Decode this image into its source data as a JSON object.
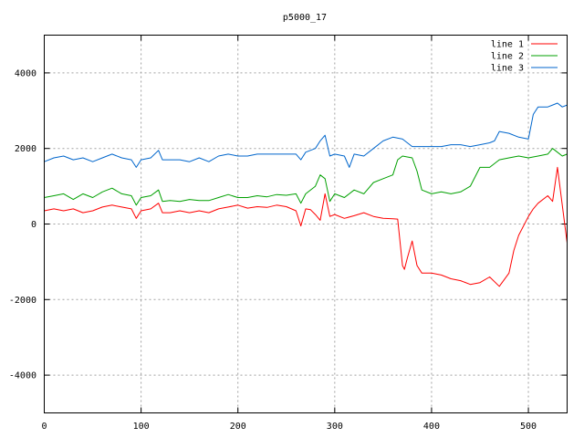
{
  "chart_data": {
    "type": "line",
    "title": "p5000_17",
    "xlabel": "",
    "ylabel": "",
    "xlim": [
      0,
      540
    ],
    "ylim": [
      -5000,
      5000
    ],
    "xticks": [
      0,
      100,
      200,
      300,
      400,
      500
    ],
    "yticks": [
      -4000,
      -2000,
      0,
      2000,
      4000
    ],
    "grid": true,
    "legend_position": "top-right",
    "series": [
      {
        "name": "line 1",
        "color": "#ff0000",
        "x": [
          0,
          10,
          20,
          30,
          40,
          50,
          60,
          70,
          80,
          90,
          95,
          100,
          110,
          118,
          122,
          130,
          140,
          150,
          160,
          170,
          180,
          190,
          200,
          210,
          220,
          230,
          240,
          250,
          260,
          265,
          270,
          275,
          280,
          285,
          290,
          295,
          300,
          310,
          320,
          330,
          340,
          350,
          360,
          365,
          370,
          372,
          375,
          380,
          385,
          390,
          400,
          410,
          420,
          430,
          440,
          450,
          460,
          470,
          480,
          485,
          490,
          500,
          505,
          510,
          520,
          525,
          530,
          535,
          540
        ],
        "y": [
          350,
          400,
          350,
          400,
          300,
          350,
          450,
          500,
          450,
          400,
          150,
          350,
          400,
          550,
          300,
          300,
          350,
          300,
          350,
          300,
          400,
          450,
          500,
          420,
          460,
          440,
          500,
          460,
          350,
          -50,
          400,
          380,
          250,
          100,
          800,
          200,
          250,
          150,
          220,
          300,
          200,
          150,
          140,
          130,
          -1100,
          -1200,
          -900,
          -450,
          -1100,
          -1300,
          -1300,
          -1350,
          -1450,
          -1500,
          -1600,
          -1550,
          -1400,
          -1650,
          -1300,
          -700,
          -300,
          200,
          400,
          550,
          750,
          600,
          1500,
          500,
          -500
        ]
      },
      {
        "name": "line 2",
        "color": "#00a000",
        "x": [
          0,
          10,
          20,
          30,
          40,
          50,
          60,
          70,
          80,
          90,
          95,
          100,
          110,
          118,
          122,
          130,
          140,
          150,
          160,
          170,
          180,
          190,
          200,
          210,
          220,
          230,
          240,
          250,
          260,
          265,
          270,
          280,
          285,
          290,
          295,
          300,
          310,
          320,
          330,
          340,
          350,
          360,
          365,
          370,
          380,
          385,
          390,
          400,
          410,
          420,
          430,
          440,
          450,
          460,
          470,
          480,
          490,
          500,
          510,
          520,
          525,
          530,
          535,
          540
        ],
        "y": [
          700,
          750,
          800,
          650,
          800,
          700,
          850,
          950,
          800,
          750,
          500,
          700,
          750,
          900,
          600,
          620,
          600,
          650,
          620,
          620,
          700,
          780,
          700,
          700,
          750,
          720,
          780,
          760,
          800,
          550,
          800,
          1000,
          1300,
          1200,
          600,
          800,
          700,
          900,
          800,
          1100,
          1200,
          1300,
          1700,
          1800,
          1750,
          1400,
          900,
          800,
          850,
          800,
          850,
          1000,
          1500,
          1500,
          1700,
          1750,
          1800,
          1750,
          1800,
          1850,
          2000,
          1900,
          1800,
          1850
        ]
      },
      {
        "name": "line 3",
        "color": "#0066cc",
        "x": [
          0,
          10,
          20,
          30,
          40,
          50,
          60,
          70,
          80,
          90,
          95,
          100,
          110,
          118,
          122,
          130,
          140,
          150,
          160,
          170,
          180,
          190,
          200,
          210,
          220,
          230,
          240,
          250,
          260,
          265,
          270,
          280,
          285,
          290,
          295,
          300,
          310,
          315,
          320,
          330,
          340,
          350,
          360,
          370,
          380,
          390,
          400,
          410,
          420,
          430,
          440,
          450,
          460,
          465,
          470,
          480,
          490,
          500,
          505,
          510,
          520,
          525,
          530,
          535,
          540
        ],
        "y": [
          1650,
          1750,
          1800,
          1700,
          1750,
          1650,
          1750,
          1850,
          1750,
          1700,
          1500,
          1700,
          1750,
          1950,
          1700,
          1700,
          1700,
          1650,
          1750,
          1650,
          1800,
          1850,
          1800,
          1800,
          1850,
          1850,
          1850,
          1850,
          1850,
          1700,
          1900,
          2000,
          2200,
          2350,
          1800,
          1850,
          1800,
          1500,
          1850,
          1800,
          2000,
          2200,
          2300,
          2250,
          2050,
          2050,
          2050,
          2050,
          2100,
          2100,
          2050,
          2100,
          2150,
          2200,
          2450,
          2400,
          2300,
          2250,
          2900,
          3100,
          3100,
          3150,
          3200,
          3100,
          3150
        ]
      }
    ]
  }
}
